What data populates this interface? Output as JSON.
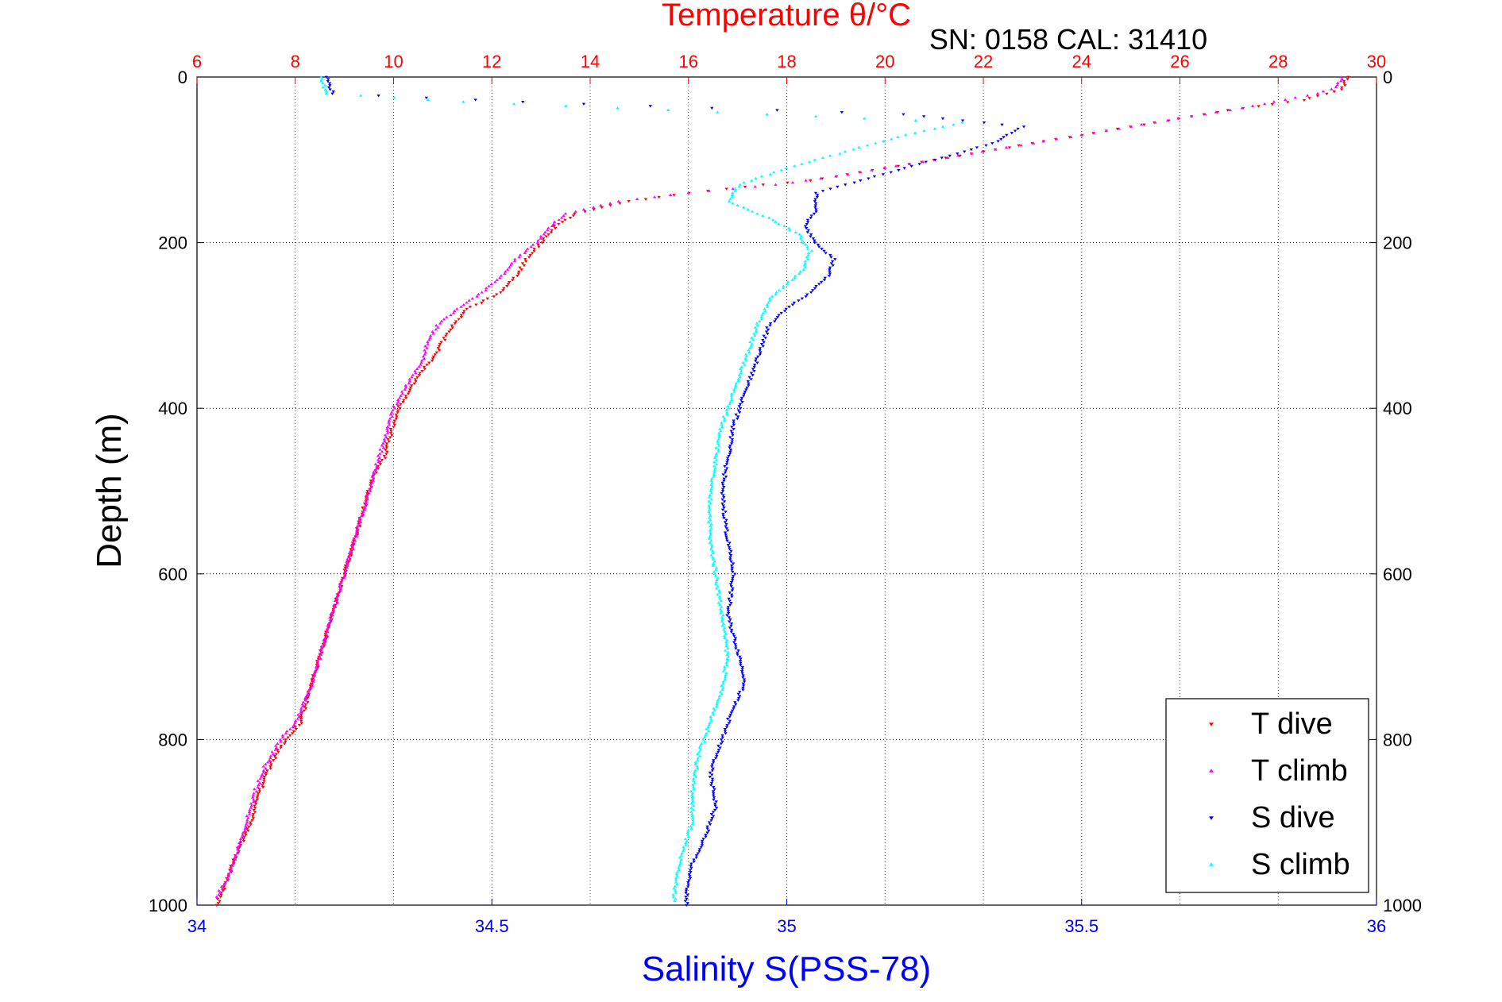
{
  "chart_data": {
    "type": "scatter",
    "title": "Temperature θ/°C",
    "subtitle": "SN: 0158  CAL: 31410",
    "xlabel": "Salinity S(PSS-78)",
    "ylabel": "Depth (m)",
    "grid": true,
    "legend_position": "bottom-right",
    "axes": {
      "depth": {
        "range": [
          0,
          1000
        ],
        "reversed": true,
        "ticks": [
          0,
          200,
          400,
          600,
          800,
          1000
        ],
        "tick_labels": [
          "0",
          "200",
          "400",
          "600",
          "800",
          "1000"
        ],
        "color": "#000000"
      },
      "temperature": {
        "range": [
          6,
          30
        ],
        "ticks": [
          6,
          8,
          10,
          12,
          14,
          16,
          18,
          20,
          22,
          24,
          26,
          28,
          30
        ],
        "tick_labels": [
          "6",
          "8",
          "10",
          "12",
          "14",
          "16",
          "18",
          "20",
          "22",
          "24",
          "26",
          "28",
          "30"
        ],
        "color": "#ff0000"
      },
      "salinity": {
        "range": [
          34,
          36
        ],
        "ticks": [
          34,
          34.5,
          35,
          35.5,
          36
        ],
        "tick_labels": [
          "34",
          "34.5",
          "35",
          "35.5",
          "36"
        ],
        "color": "#0000ff"
      }
    },
    "series": [
      {
        "name": "T dive",
        "axis": "temperature",
        "color": "#ff0000",
        "marker": "triangle-down",
        "points": [
          [
            29.4,
            0
          ],
          [
            29.3,
            15
          ],
          [
            28.5,
            28
          ],
          [
            27.0,
            40
          ],
          [
            25.5,
            55
          ],
          [
            24.0,
            70
          ],
          [
            22.5,
            85
          ],
          [
            21.0,
            100
          ],
          [
            19.5,
            115
          ],
          [
            18.5,
            125
          ],
          [
            17.5,
            130
          ],
          [
            16.0,
            140
          ],
          [
            14.8,
            150
          ],
          [
            13.7,
            165
          ],
          [
            13.3,
            180
          ],
          [
            13.0,
            200
          ],
          [
            12.7,
            220
          ],
          [
            12.5,
            240
          ],
          [
            12.2,
            260
          ],
          [
            11.5,
            280
          ],
          [
            11.2,
            300
          ],
          [
            11.0,
            320
          ],
          [
            10.8,
            340
          ],
          [
            10.5,
            360
          ],
          [
            10.3,
            380
          ],
          [
            10.1,
            400
          ],
          [
            10.0,
            420
          ],
          [
            9.9,
            440
          ],
          [
            9.8,
            460
          ],
          [
            9.6,
            480
          ],
          [
            9.5,
            500
          ],
          [
            9.3,
            540
          ],
          [
            9.1,
            580
          ],
          [
            8.9,
            620
          ],
          [
            8.7,
            660
          ],
          [
            8.5,
            700
          ],
          [
            8.3,
            740
          ],
          [
            8.1,
            780
          ],
          [
            7.8,
            800
          ],
          [
            7.5,
            830
          ],
          [
            7.3,
            860
          ],
          [
            7.1,
            900
          ],
          [
            6.8,
            940
          ],
          [
            6.6,
            970
          ],
          [
            6.4,
            1000
          ]
        ]
      },
      {
        "name": "T climb",
        "axis": "temperature",
        "color": "#ff00ff",
        "marker": "triangle-up",
        "points": [
          [
            29.3,
            0
          ],
          [
            29.2,
            12
          ],
          [
            28.8,
            20
          ],
          [
            27.5,
            35
          ],
          [
            26.0,
            50
          ],
          [
            24.5,
            65
          ],
          [
            23.0,
            80
          ],
          [
            21.5,
            95
          ],
          [
            20.0,
            110
          ],
          [
            19.0,
            120
          ],
          [
            17.8,
            130
          ],
          [
            16.0,
            140
          ],
          [
            14.6,
            150
          ],
          [
            13.5,
            165
          ],
          [
            13.2,
            180
          ],
          [
            12.9,
            200
          ],
          [
            12.5,
            220
          ],
          [
            12.2,
            240
          ],
          [
            11.8,
            260
          ],
          [
            11.3,
            280
          ],
          [
            10.9,
            300
          ],
          [
            10.7,
            320
          ],
          [
            10.6,
            340
          ],
          [
            10.4,
            360
          ],
          [
            10.2,
            380
          ],
          [
            10.0,
            400
          ],
          [
            9.9,
            420
          ],
          [
            9.8,
            440
          ],
          [
            9.7,
            460
          ],
          [
            9.6,
            480
          ],
          [
            9.5,
            500
          ],
          [
            9.3,
            540
          ],
          [
            9.1,
            580
          ],
          [
            8.9,
            620
          ],
          [
            8.7,
            660
          ],
          [
            8.5,
            700
          ],
          [
            8.3,
            740
          ],
          [
            8.0,
            780
          ],
          [
            7.7,
            800
          ],
          [
            7.4,
            830
          ],
          [
            7.2,
            860
          ],
          [
            7.0,
            900
          ],
          [
            6.8,
            940
          ],
          [
            6.6,
            970
          ],
          [
            6.4,
            990
          ]
        ]
      },
      {
        "name": "S dive",
        "axis": "salinity",
        "color": "#0000ff",
        "marker": "triangle-down",
        "points": [
          [
            34.22,
            0
          ],
          [
            34.23,
            20
          ],
          [
            34.55,
            30
          ],
          [
            35.2,
            45
          ],
          [
            35.4,
            60
          ],
          [
            35.35,
            80
          ],
          [
            35.25,
            100
          ],
          [
            35.15,
            120
          ],
          [
            35.05,
            140
          ],
          [
            35.05,
            160
          ],
          [
            35.03,
            180
          ],
          [
            35.05,
            200
          ],
          [
            35.08,
            220
          ],
          [
            35.07,
            240
          ],
          [
            35.04,
            260
          ],
          [
            35.0,
            280
          ],
          [
            34.97,
            300
          ],
          [
            34.95,
            340
          ],
          [
            34.93,
            380
          ],
          [
            34.91,
            420
          ],
          [
            34.9,
            460
          ],
          [
            34.89,
            500
          ],
          [
            34.9,
            560
          ],
          [
            34.91,
            600
          ],
          [
            34.9,
            650
          ],
          [
            34.92,
            700
          ],
          [
            34.93,
            730
          ],
          [
            34.91,
            760
          ],
          [
            34.89,
            800
          ],
          [
            34.87,
            840
          ],
          [
            34.88,
            880
          ],
          [
            34.86,
            920
          ],
          [
            34.84,
            950
          ],
          [
            34.83,
            980
          ],
          [
            34.83,
            1000
          ]
        ]
      },
      {
        "name": "S climb",
        "axis": "salinity",
        "color": "#00ffff",
        "marker": "triangle-up",
        "points": [
          [
            34.21,
            0
          ],
          [
            34.22,
            20
          ],
          [
            34.45,
            30
          ],
          [
            34.8,
            40
          ],
          [
            35.3,
            55
          ],
          [
            35.2,
            70
          ],
          [
            35.1,
            90
          ],
          [
            35.0,
            110
          ],
          [
            34.92,
            130
          ],
          [
            34.9,
            150
          ],
          [
            34.97,
            170
          ],
          [
            35.02,
            190
          ],
          [
            35.04,
            210
          ],
          [
            35.03,
            230
          ],
          [
            35.0,
            250
          ],
          [
            34.97,
            270
          ],
          [
            34.95,
            300
          ],
          [
            34.93,
            340
          ],
          [
            34.91,
            380
          ],
          [
            34.89,
            420
          ],
          [
            34.88,
            460
          ],
          [
            34.87,
            500
          ],
          [
            34.87,
            560
          ],
          [
            34.88,
            600
          ],
          [
            34.89,
            650
          ],
          [
            34.9,
            700
          ],
          [
            34.89,
            740
          ],
          [
            34.87,
            780
          ],
          [
            34.85,
            820
          ],
          [
            34.84,
            860
          ],
          [
            34.84,
            900
          ],
          [
            34.82,
            940
          ],
          [
            34.81,
            980
          ],
          [
            34.81,
            995
          ]
        ]
      }
    ]
  }
}
